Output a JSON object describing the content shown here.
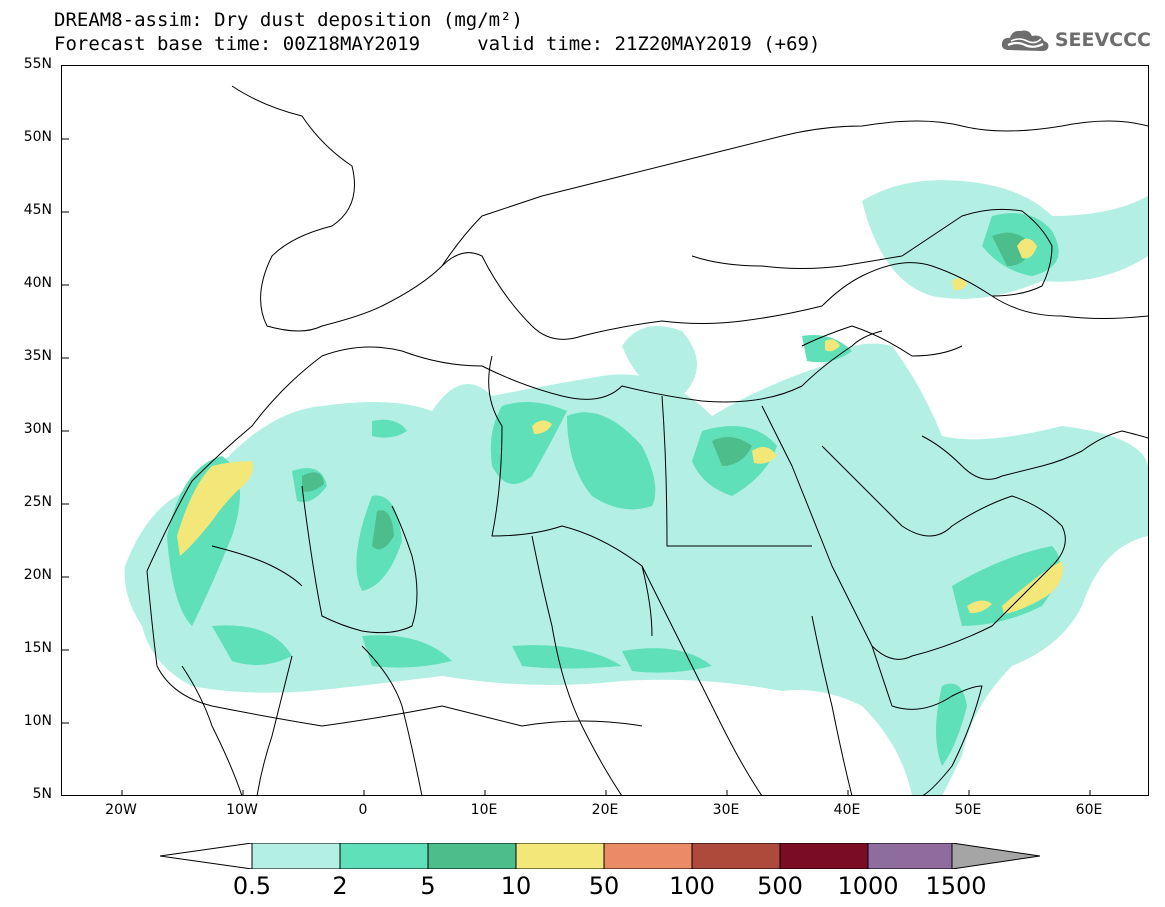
{
  "header": {
    "title_line1": "DREAM8-assim: Dry dust deposition (mg/m²)",
    "title_line2": "Forecast base time: 00Z18MAY2019     valid time: 21Z20MAY2019 (+69)",
    "brand": "SEEVCCC",
    "brand_icon": "cloud-logo-icon"
  },
  "map": {
    "region": "North Africa, Europe, Middle East",
    "lat_range": [
      "5N",
      "55N"
    ],
    "lon_range": [
      "25W",
      "65E"
    ],
    "lat_labels": [
      "55N",
      "50N",
      "45N",
      "40N",
      "35N",
      "30N",
      "25N",
      "20N",
      "15N",
      "10N",
      "5N"
    ],
    "lon_labels": [
      "20W",
      "10W",
      "0",
      "10E",
      "20E",
      "30E",
      "40E",
      "50E",
      "60E"
    ]
  },
  "colorbar": {
    "labels": [
      "0.5",
      "2",
      "5",
      "10",
      "50",
      "100",
      "500",
      "1000",
      "1500"
    ],
    "colors": [
      "#b3f0e3",
      "#5fe0b8",
      "#4dbd8c",
      "#f3e77a",
      "#eb8a66",
      "#ad4a3c",
      "#7a0c25",
      "#8e6c9e",
      "#a5a5a5"
    ],
    "under_color": "#ffffff"
  }
}
